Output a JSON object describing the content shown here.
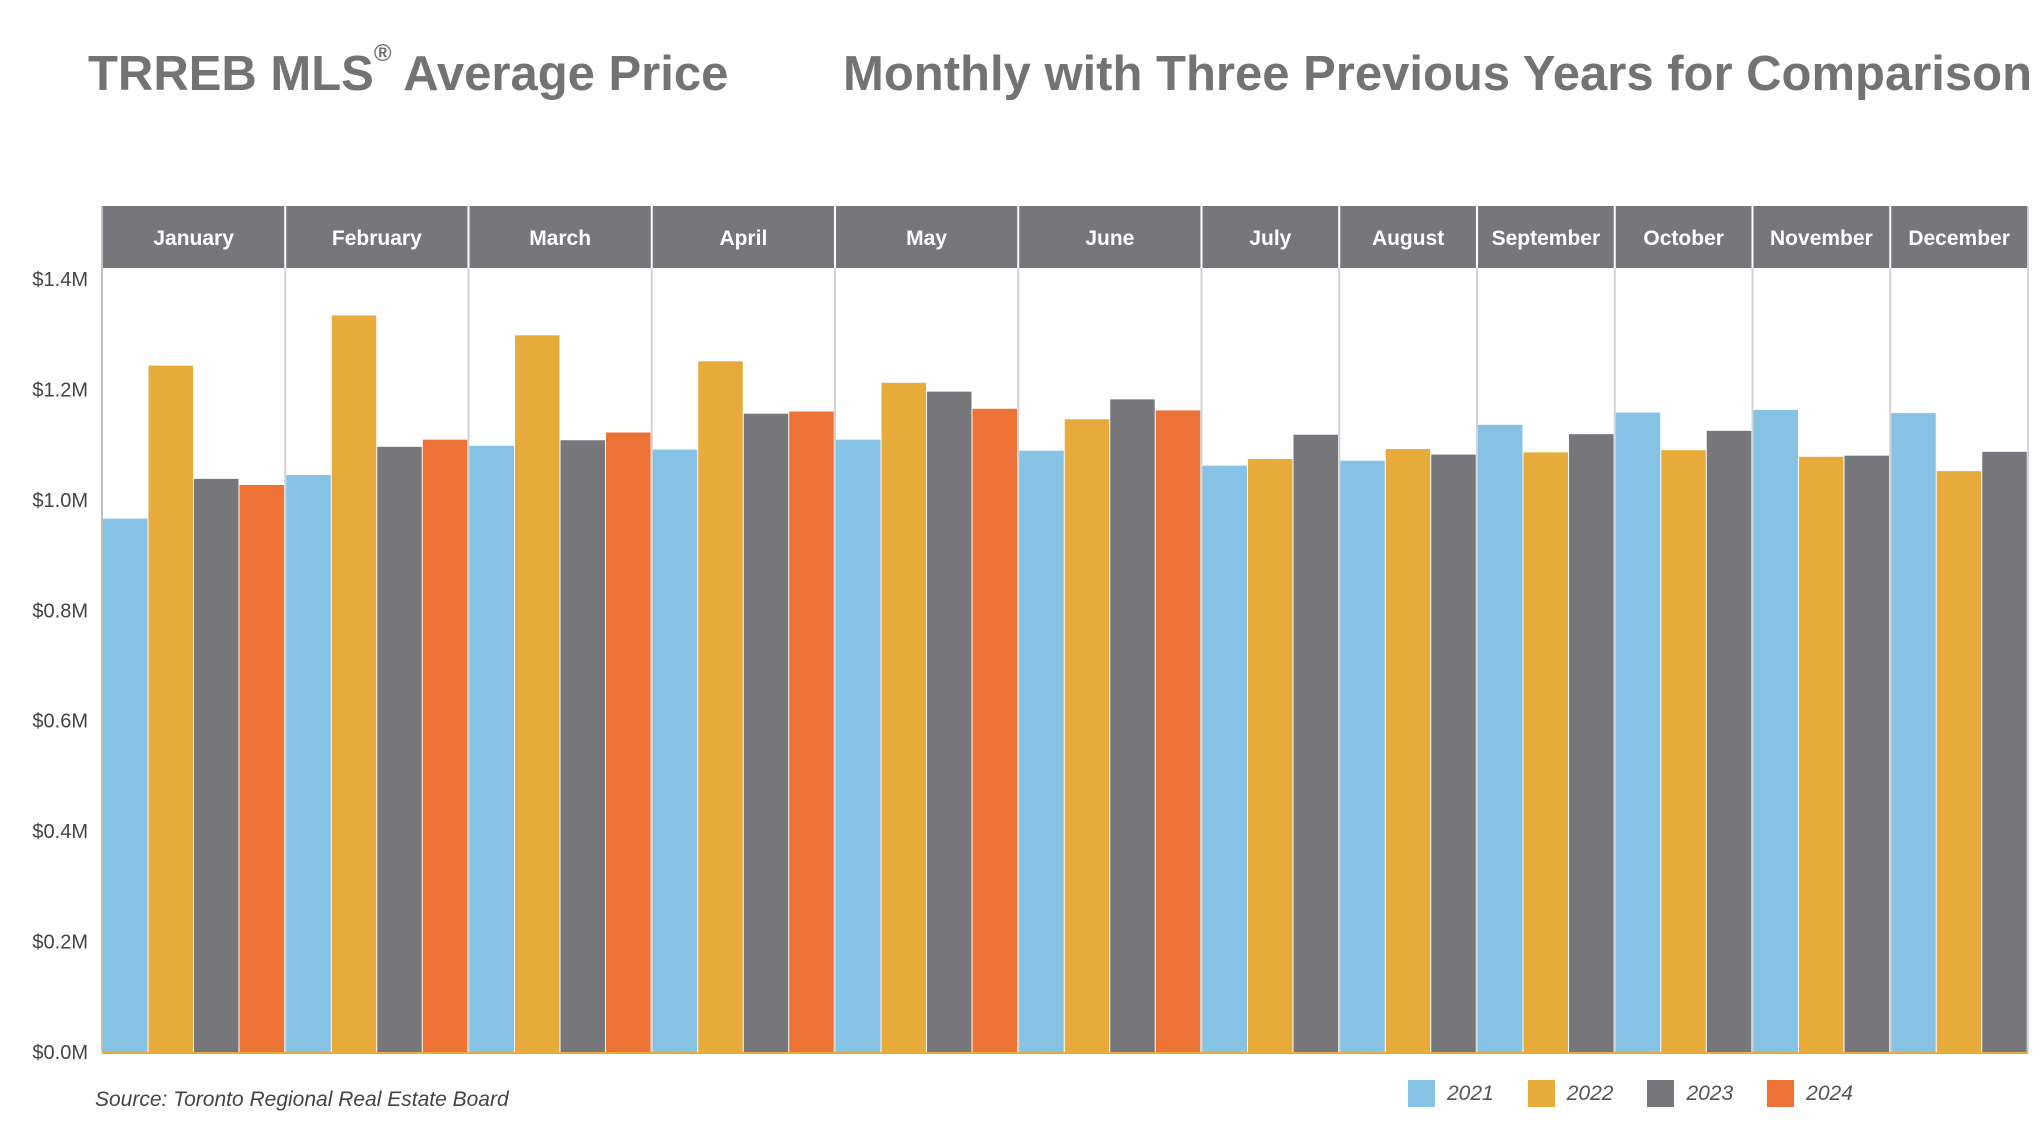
{
  "header": {
    "title_left": "TRREB MLS",
    "title_left_sup": "®",
    "title_left_rest": " Average Price",
    "title_right": "Monthly with Three Previous Years for Comparison"
  },
  "footer": {
    "source": "Source: Toronto Regional Real Estate Board"
  },
  "chart_data": {
    "type": "bar",
    "title": "TRREB MLS® Average Price",
    "subtitle": "Monthly with Three Previous Years for Comparison",
    "categories": [
      "January",
      "February",
      "March",
      "April",
      "May",
      "June",
      "July",
      "August",
      "September",
      "October",
      "November",
      "December"
    ],
    "ylim": [
      0,
      1.4
    ],
    "yticks": [
      0,
      0.2,
      0.4,
      0.6,
      0.8,
      1.0,
      1.2,
      1.4
    ],
    "ytick_labels": [
      "$0.0M",
      "$0.2M",
      "$0.4M",
      "$0.6M",
      "$0.8M",
      "$1.0M",
      "$1.2M",
      "$1.4M"
    ],
    "grid": false,
    "legend_position": "bottom-right",
    "series": [
      {
        "name": "2021",
        "color": "#85c2e3",
        "values": [
          0.966,
          1.045,
          1.098,
          1.091,
          1.109,
          1.089,
          1.062,
          1.071,
          1.136,
          1.158,
          1.163,
          1.157
        ]
      },
      {
        "name": "2022",
        "color": "#e6ab3a",
        "values": [
          1.243,
          1.334,
          1.298,
          1.251,
          1.212,
          1.146,
          1.074,
          1.092,
          1.086,
          1.09,
          1.078,
          1.052
        ]
      },
      {
        "name": "2023",
        "color": "#77777b",
        "values": [
          1.038,
          1.096,
          1.108,
          1.156,
          1.196,
          1.182,
          1.118,
          1.082,
          1.119,
          1.125,
          1.08,
          1.087
        ]
      },
      {
        "name": "2024",
        "color": "#ec7335",
        "values": [
          1.027,
          1.109,
          1.122,
          1.16,
          1.165,
          1.162,
          null,
          null,
          null,
          null,
          null,
          null
        ]
      }
    ]
  }
}
